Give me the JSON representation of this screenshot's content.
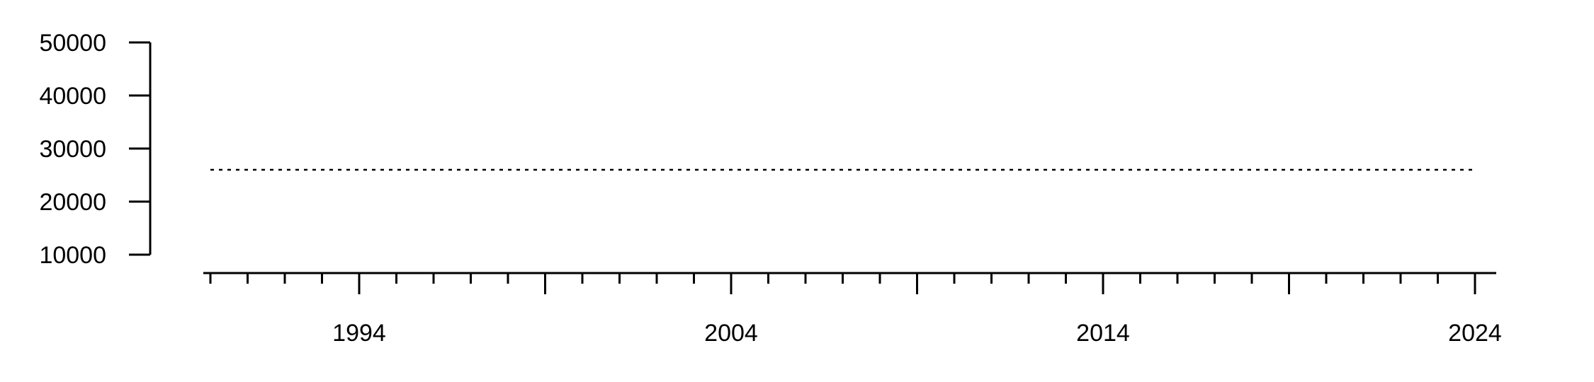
{
  "chart_data": {
    "type": "line",
    "title": "",
    "xlabel": "",
    "ylabel": "",
    "xlim": [
      1990,
      2024
    ],
    "ylim": [
      10000,
      50000
    ],
    "y_ticks": [
      "10000",
      "20000",
      "30000",
      "40000",
      "50000"
    ],
    "x_ticks": [
      "1994",
      "2004",
      "2014",
      "2024"
    ],
    "x_major_tick_years": [
      1994,
      1999,
      2004,
      2009,
      2014,
      2019,
      2024
    ],
    "x_minor_tick_step_years": 1,
    "grid": false,
    "series": [
      {
        "line_style": "dotted",
        "color": "#000000",
        "x": [
          1990,
          2024
        ],
        "y": [
          26000,
          26000
        ]
      }
    ]
  }
}
